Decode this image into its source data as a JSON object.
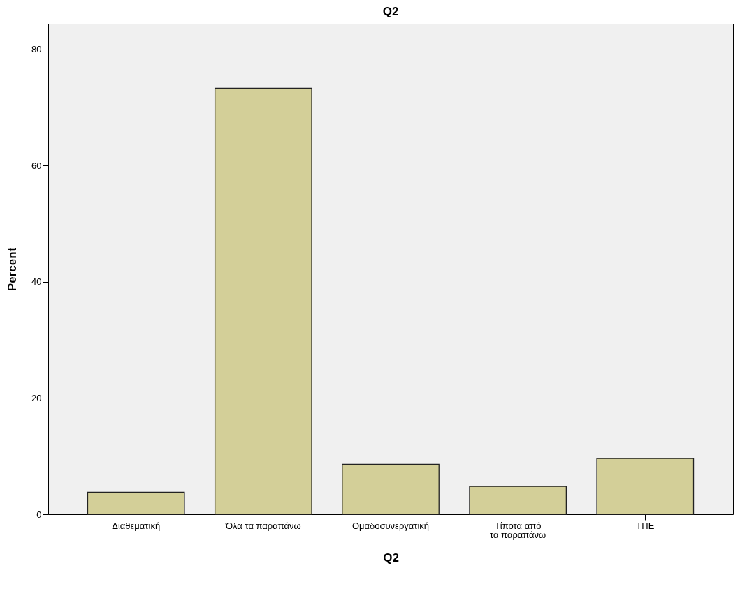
{
  "chart_data": {
    "type": "bar",
    "title": "Q2",
    "xlabel": "Q2",
    "ylabel": "Percent",
    "categories": [
      "Διαθεματική",
      "Όλα τα παραπάνω",
      "Ομαδοσυνεργατική",
      "Τίποτα από τα παραπάνω",
      "ΤΠΕ"
    ],
    "values": [
      3.8,
      73.3,
      8.6,
      4.8,
      9.6
    ],
    "color": "#d3cf98",
    "ylim": [
      0,
      84.4
    ],
    "yticks": [
      0,
      20,
      40,
      60,
      80
    ],
    "grid": false
  }
}
